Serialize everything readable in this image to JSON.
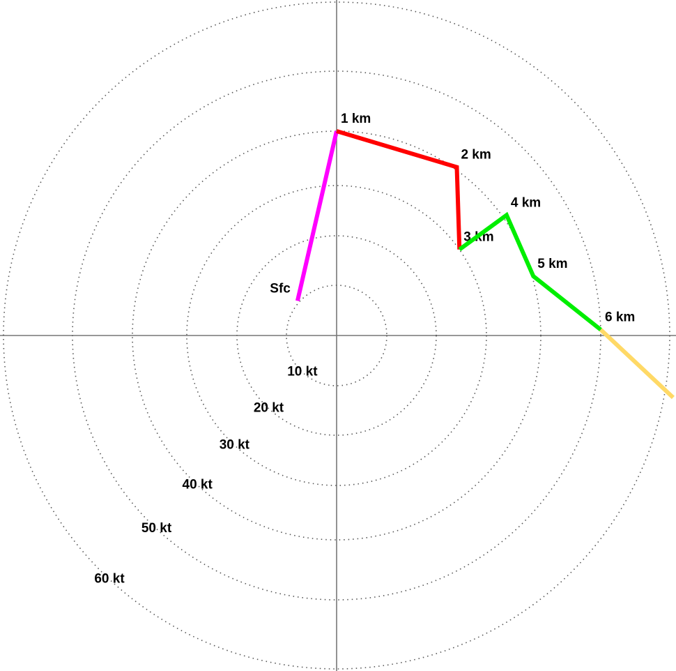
{
  "chart_data": {
    "type": "hodograph",
    "rlim": [
      0,
      60
    ],
    "rticks": [
      {
        "value": 10,
        "label": "10 kt"
      },
      {
        "value": 20,
        "label": "20 kt"
      },
      {
        "value": 30,
        "label": "30 kt"
      },
      {
        "value": 40,
        "label": "40 kt"
      },
      {
        "value": 50,
        "label": "50 kt"
      },
      {
        "value": 60,
        "label": "60 kt"
      }
    ],
    "series": [
      {
        "color": "#ff00ff",
        "u": [
          -7.8,
          0
        ],
        "v": [
          6.9,
          40
        ],
        "point_labels": [
          "Sfc",
          "1 km"
        ]
      },
      {
        "color": "#ff0000",
        "u": [
          0,
          23.5,
          24.6
        ],
        "v": [
          40,
          32.9,
          17.2
        ],
        "point_labels": [
          null,
          "2 km",
          "3 km"
        ]
      },
      {
        "color": "#00ee00",
        "u": [
          24.6,
          33.2,
          38.5,
          50
        ],
        "v": [
          17.2,
          23.5,
          11.6,
          1.1
        ],
        "point_labels": [
          null,
          "4 km",
          "5 km",
          "6 km"
        ]
      },
      {
        "color": "#ffd966",
        "u": [
          50,
          60.3
        ],
        "v": [
          1.1,
          -11.1
        ],
        "point_labels": [
          null,
          null
        ]
      }
    ]
  }
}
